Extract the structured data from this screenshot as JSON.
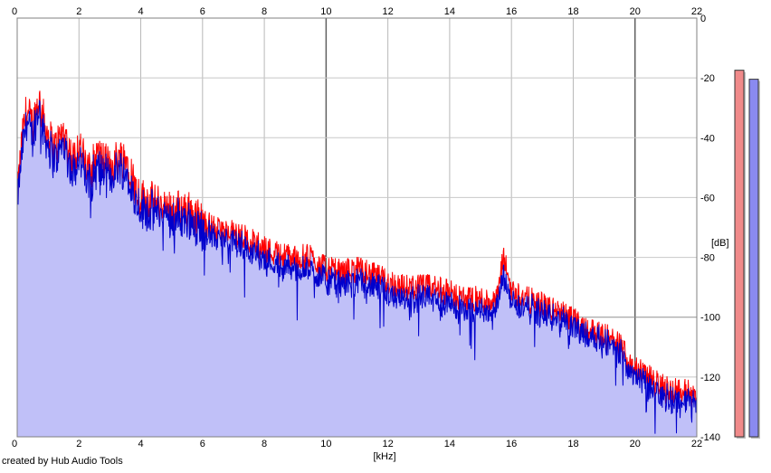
{
  "footer": {
    "credit": "created by Hub Audio Tools"
  },
  "chart_data": {
    "type": "area",
    "xlabel": "[kHz]",
    "ylabel": "[dB]",
    "xlim": [
      0,
      22
    ],
    "ylim": [
      -140,
      0
    ],
    "x_ticks": [
      0,
      2,
      4,
      6,
      8,
      10,
      12,
      14,
      16,
      18,
      20,
      22
    ],
    "y_ticks": [
      0,
      -20,
      -40,
      -60,
      -80,
      -100,
      -120,
      -140
    ],
    "grid": true,
    "colors": {
      "channel_1": "#ff0000",
      "channel_2": "#0000cc",
      "fill": "#c0c0f8",
      "meter_1": "#f08a8a",
      "meter_2": "#8a8af0"
    },
    "spectrum_anchor_points": {
      "x_khz": [
        0,
        0.15,
        0.3,
        0.5,
        0.7,
        0.9,
        1.2,
        1.5,
        1.8,
        2.0,
        2.3,
        2.6,
        3.0,
        3.3,
        3.6,
        3.8,
        4.0,
        4.5,
        5.0,
        5.5,
        6.0,
        6.5,
        7.0,
        7.5,
        8.0,
        8.5,
        9.0,
        9.5,
        10.0,
        10.5,
        11.0,
        11.5,
        12.0,
        12.5,
        13.0,
        13.5,
        14.0,
        14.5,
        15.0,
        15.5,
        15.75,
        16.0,
        16.5,
        17.0,
        17.5,
        18.0,
        18.5,
        19.0,
        19.5,
        20.0,
        20.5,
        21.0,
        21.5,
        22.0
      ],
      "channel_1_db": [
        -60,
        -42,
        -31,
        -36,
        -27,
        -36,
        -44,
        -38,
        -48,
        -42,
        -52,
        -46,
        -50,
        -46,
        -48,
        -56,
        -60,
        -62,
        -64,
        -64,
        -68,
        -71,
        -72,
        -74,
        -77,
        -79,
        -80,
        -80,
        -84,
        -85,
        -84,
        -86,
        -88,
        -90,
        -90,
        -90,
        -92,
        -94,
        -94,
        -95,
        -80,
        -91,
        -94,
        -96,
        -98,
        -101,
        -104,
        -106,
        -110,
        -117,
        -121,
        -124,
        -125,
        -126
      ],
      "channel_2_db": [
        -62,
        -46,
        -34,
        -40,
        -30,
        -40,
        -48,
        -42,
        -52,
        -46,
        -56,
        -50,
        -54,
        -50,
        -52,
        -60,
        -64,
        -65,
        -67,
        -67,
        -71,
        -74,
        -75,
        -77,
        -81,
        -83,
        -84,
        -84,
        -88,
        -89,
        -88,
        -90,
        -92,
        -94,
        -94,
        -94,
        -96,
        -98,
        -98,
        -98,
        -86,
        -95,
        -97,
        -99,
        -101,
        -103,
        -106,
        -108,
        -112,
        -119,
        -124,
        -127,
        -128,
        -128
      ]
    },
    "level_meter": {
      "channel_1_db": -12,
      "channel_2_db": -15
    }
  }
}
